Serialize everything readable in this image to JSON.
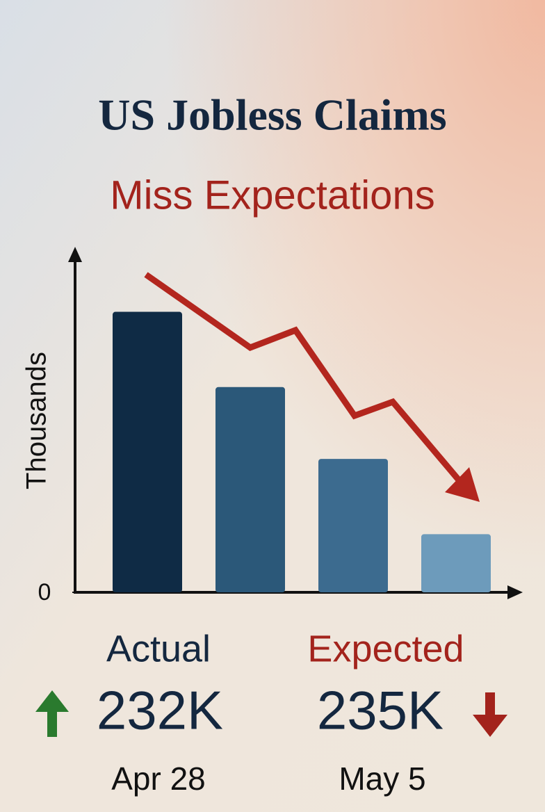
{
  "chart_data": {
    "type": "bar",
    "title": "US Jobless Claims",
    "subtitle": "Miss Expectations",
    "y_label": "Thousands",
    "categories": [
      null,
      null,
      null,
      null
    ],
    "values": [
      82,
      60,
      39,
      17
    ],
    "colors": [
      "#0f2b45",
      "#2b5879",
      "#3c6b8f",
      "#6d9bbb"
    ],
    "ylim": [
      0,
      100
    ],
    "yticks": [
      0
    ],
    "callouts": [
      {
        "label": "Actual",
        "value": "232K",
        "date": "Apr 28"
      },
      {
        "label": "Expected",
        "value": "235K",
        "date": "May 5"
      }
    ]
  }
}
